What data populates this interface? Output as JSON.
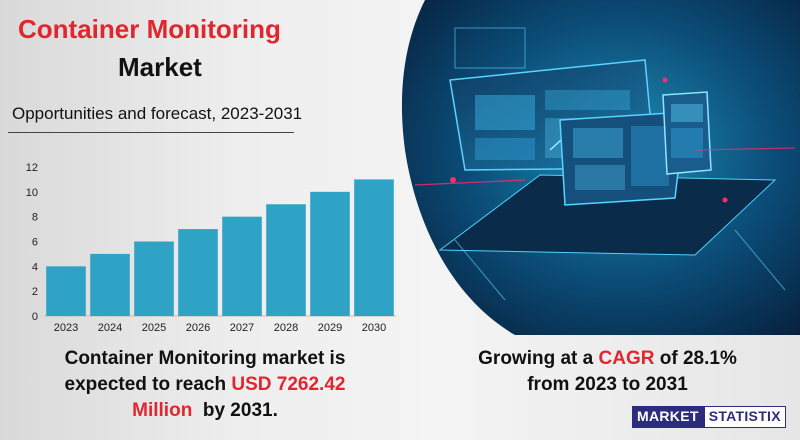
{
  "header": {
    "title_line1": "Container Monitoring",
    "title_line2": "Market",
    "subtitle": "Opportunities and forecast, 2023-2031"
  },
  "chart_data": {
    "type": "bar",
    "categories": [
      "2023",
      "2024",
      "2025",
      "2026",
      "2027",
      "2028",
      "2029",
      "2030"
    ],
    "values": [
      4,
      5,
      6,
      7,
      8,
      9,
      10,
      11
    ],
    "ylim": [
      0,
      12
    ],
    "yticks": [
      0,
      2,
      4,
      6,
      8,
      10,
      12
    ],
    "grid": false,
    "bar_color": "#2ea3c5"
  },
  "notes": {
    "left_line1": "Container Monitoring market  is",
    "left_line2_pre": "expected to reach ",
    "left_value": "USD 7262.42",
    "left_line3_value": "Million",
    "left_line3_post": "  by 2031.",
    "right_pre": "Growing at a ",
    "right_cagr_label": "CAGR",
    "right_mid": " of 28.1%",
    "right_line2": "from 2023 to 2031"
  },
  "logo": {
    "part1": "MARKET",
    "part2": "STATISTIX"
  },
  "colors": {
    "accent_red": "#e2262f",
    "bar": "#2ea3c5",
    "logo_navy": "#2c2c7e"
  },
  "image": {
    "icon": "laptop-tablet-phone-dashboards-illustration"
  }
}
